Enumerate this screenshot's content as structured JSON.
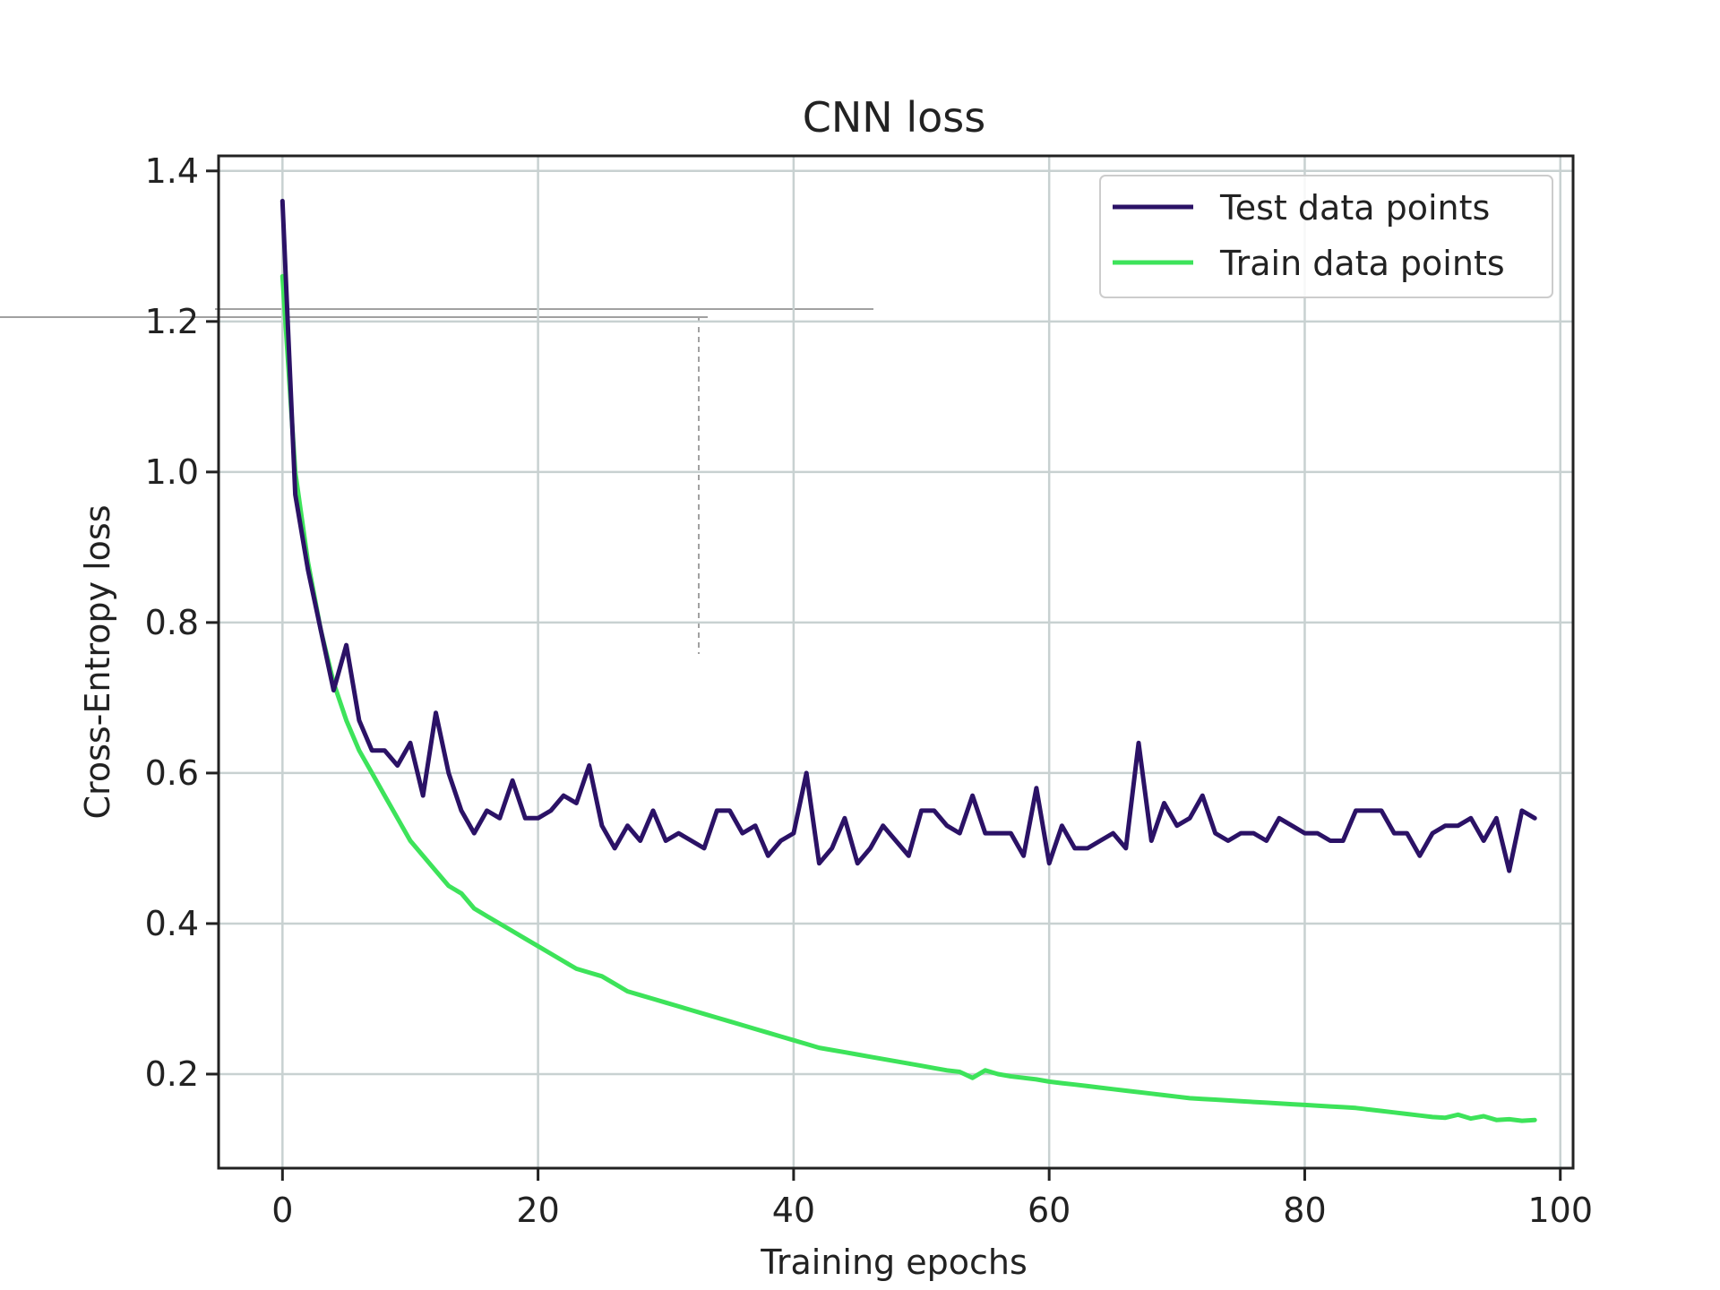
{
  "chart_data": {
    "type": "line",
    "title": "CNN loss",
    "xlabel": "Training epochs",
    "ylabel": "Cross-Entropy loss",
    "xlim": [
      -5,
      101
    ],
    "ylim": [
      0.075,
      1.42
    ],
    "x_ticks": [
      0,
      20,
      40,
      60,
      80,
      100
    ],
    "x_tick_labels": [
      "0",
      "20",
      "40",
      "60",
      "80",
      "100"
    ],
    "y_ticks": [
      0.2,
      0.4,
      0.6,
      0.8,
      1.0,
      1.2,
      1.4
    ],
    "y_tick_labels": [
      "0.2",
      "0.4",
      "0.6",
      "0.8",
      "1.0",
      "1.2",
      "1.4"
    ],
    "grid": true,
    "legend_position": "top-right",
    "colors": {
      "test": "#2b1266",
      "train": "#3de35a"
    },
    "series": [
      {
        "name": "Test data points",
        "color": "#2b1266",
        "x": [
          0,
          1,
          2,
          3,
          4,
          5,
          6,
          7,
          8,
          9,
          10,
          11,
          12,
          13,
          14,
          15,
          16,
          17,
          18,
          19,
          20,
          21,
          22,
          23,
          24,
          25,
          26,
          27,
          28,
          29,
          30,
          31,
          32,
          33,
          34,
          35,
          36,
          37,
          38,
          39,
          40,
          41,
          42,
          43,
          44,
          45,
          46,
          47,
          48,
          49,
          50,
          51,
          52,
          53,
          54,
          55,
          56,
          57,
          58,
          59,
          60,
          61,
          62,
          63,
          64,
          65,
          66,
          67,
          68,
          69,
          70,
          71,
          72,
          73,
          74,
          75,
          76,
          77,
          78,
          79,
          80,
          81,
          82,
          83,
          84,
          85,
          86,
          87,
          88,
          89,
          90,
          91,
          92,
          93,
          94,
          95,
          96,
          97,
          98
        ],
        "values": [
          1.36,
          0.97,
          0.87,
          0.79,
          0.71,
          0.77,
          0.67,
          0.63,
          0.63,
          0.61,
          0.64,
          0.57,
          0.68,
          0.6,
          0.55,
          0.52,
          0.55,
          0.54,
          0.59,
          0.54,
          0.54,
          0.55,
          0.57,
          0.56,
          0.61,
          0.53,
          0.5,
          0.53,
          0.51,
          0.55,
          0.51,
          0.52,
          0.51,
          0.5,
          0.55,
          0.55,
          0.52,
          0.53,
          0.49,
          0.51,
          0.52,
          0.6,
          0.48,
          0.5,
          0.54,
          0.48,
          0.5,
          0.53,
          0.51,
          0.49,
          0.55,
          0.55,
          0.53,
          0.52,
          0.57,
          0.52,
          0.52,
          0.52,
          0.49,
          0.58,
          0.48,
          0.53,
          0.5,
          0.5,
          0.51,
          0.52,
          0.5,
          0.64,
          0.51,
          0.56,
          0.53,
          0.54,
          0.57,
          0.52,
          0.51,
          0.52,
          0.52,
          0.51,
          0.54,
          0.53,
          0.52,
          0.52,
          0.51,
          0.51,
          0.55,
          0.55,
          0.55,
          0.52,
          0.52,
          0.49,
          0.52,
          0.53,
          0.53,
          0.54,
          0.51,
          0.54,
          0.47,
          0.55,
          0.54
        ]
      },
      {
        "name": "Train data points",
        "color": "#3de35a",
        "x": [
          0,
          1,
          2,
          3,
          4,
          5,
          6,
          7,
          8,
          9,
          10,
          11,
          12,
          13,
          14,
          15,
          16,
          17,
          18,
          19,
          20,
          21,
          22,
          23,
          24,
          25,
          26,
          27,
          28,
          29,
          30,
          31,
          32,
          33,
          34,
          35,
          36,
          37,
          38,
          39,
          40,
          41,
          42,
          43,
          44,
          45,
          46,
          47,
          48,
          49,
          50,
          51,
          52,
          53,
          54,
          55,
          56,
          57,
          58,
          59,
          60,
          61,
          62,
          63,
          64,
          65,
          66,
          67,
          68,
          69,
          70,
          71,
          72,
          73,
          74,
          75,
          76,
          77,
          78,
          79,
          80,
          81,
          82,
          83,
          84,
          85,
          86,
          87,
          88,
          89,
          90,
          91,
          92,
          93,
          94,
          95,
          96,
          97,
          98
        ],
        "values": [
          1.26,
          1.0,
          0.88,
          0.79,
          0.72,
          0.67,
          0.63,
          0.6,
          0.57,
          0.54,
          0.51,
          0.49,
          0.47,
          0.45,
          0.44,
          0.42,
          0.41,
          0.4,
          0.39,
          0.38,
          0.37,
          0.36,
          0.35,
          0.34,
          0.335,
          0.33,
          0.32,
          0.31,
          0.305,
          0.3,
          0.295,
          0.29,
          0.285,
          0.28,
          0.275,
          0.27,
          0.265,
          0.26,
          0.255,
          0.25,
          0.245,
          0.24,
          0.235,
          0.232,
          0.229,
          0.226,
          0.223,
          0.22,
          0.217,
          0.214,
          0.211,
          0.208,
          0.205,
          0.203,
          0.195,
          0.205,
          0.2,
          0.197,
          0.195,
          0.193,
          0.19,
          0.188,
          0.186,
          0.184,
          0.182,
          0.18,
          0.178,
          0.176,
          0.174,
          0.172,
          0.17,
          0.168,
          0.167,
          0.166,
          0.165,
          0.164,
          0.163,
          0.162,
          0.161,
          0.16,
          0.159,
          0.158,
          0.157,
          0.156,
          0.155,
          0.153,
          0.151,
          0.149,
          0.147,
          0.145,
          0.143,
          0.142,
          0.146,
          0.141,
          0.144,
          0.139,
          0.14,
          0.138,
          0.139
        ]
      }
    ]
  }
}
